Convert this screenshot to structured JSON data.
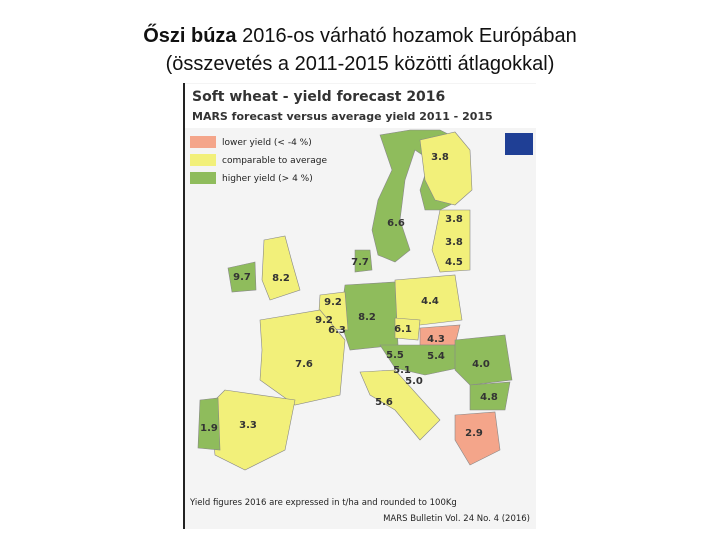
{
  "slide": {
    "title_bold": "Őszi búza",
    "title_rest": "2016-os várható hozamok Európában",
    "title_line2": "(összevetés a 2011-2015 közötti átlagokkal)"
  },
  "map": {
    "title": "Soft wheat - yield forecast 2016",
    "subtitle": "MARS forecast versus average yield 2011 - 2015",
    "legend": [
      {
        "label": "lower yield (< -4 %)",
        "color": "#f4a58a"
      },
      {
        "label": "comparable to average",
        "color": "#f2f07a"
      },
      {
        "label": "higher yield (> 4 %)",
        "color": "#8fbc5c"
      }
    ],
    "yields": [
      "3.8",
      "6.6",
      "3.8",
      "3.8",
      "4.5",
      "7.7",
      "9.7",
      "8.2",
      "4.4",
      "9.2",
      "9.2",
      "8.2",
      "6.3",
      "6.1",
      "4.3",
      "7.6",
      "5.5",
      "5.4",
      "4.0",
      "5.1",
      "5.0",
      "4.8",
      "5.6",
      "2.9",
      "1.9",
      "3.3"
    ],
    "footnote": "Yield figures 2016 are expressed in t/ha and rounded to 100Kg",
    "source": "MARS Bulletin Vol. 24 No. 4 (2016)"
  }
}
